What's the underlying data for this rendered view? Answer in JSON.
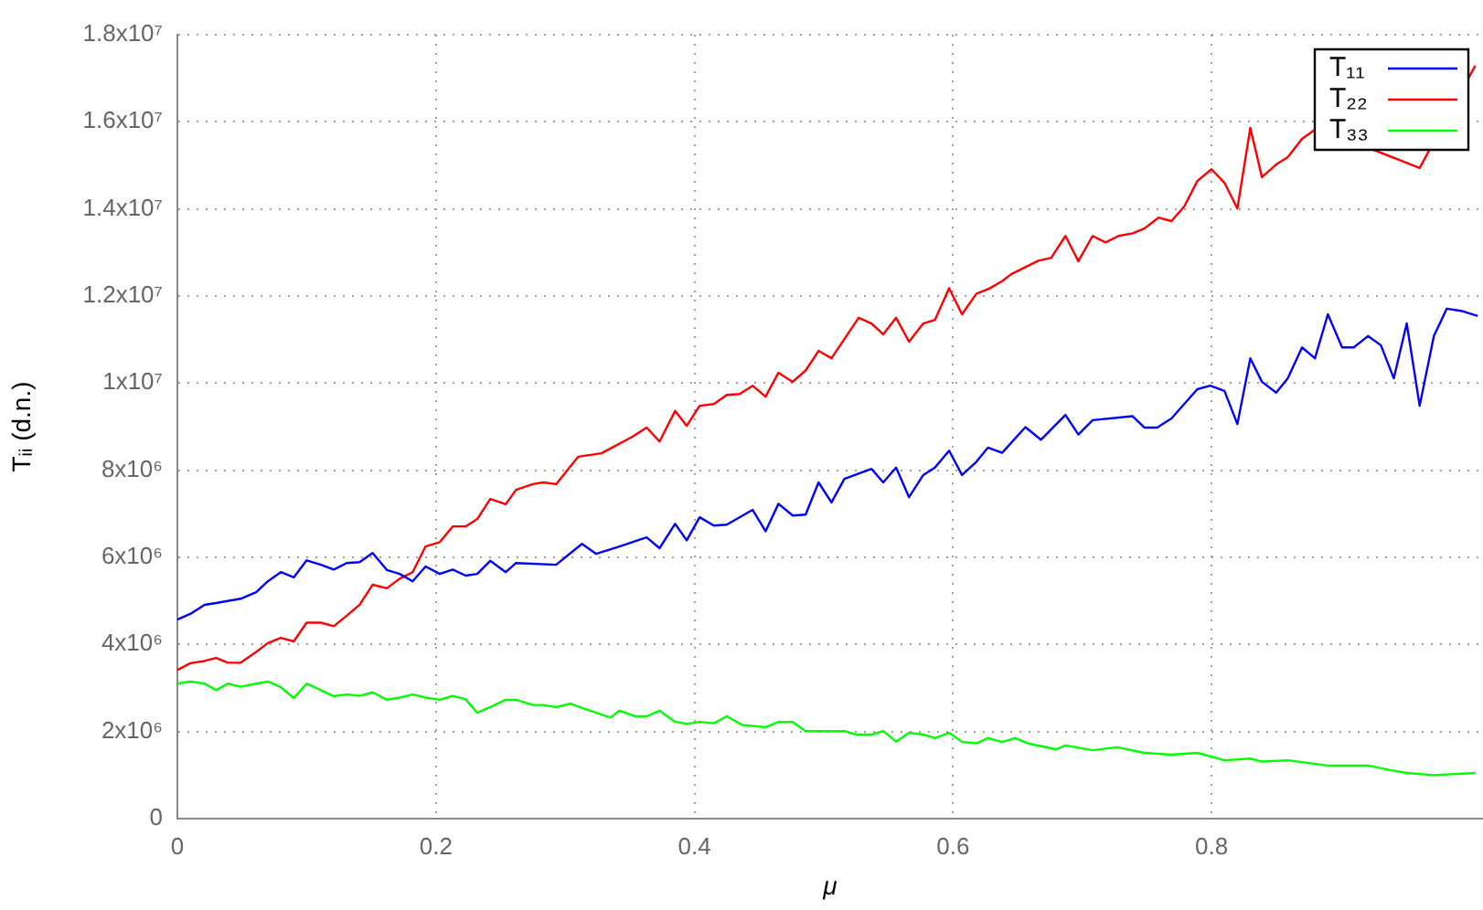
{
  "chart_data": {
    "type": "line",
    "xlabel": "μ",
    "ylabel": "Tᵢᵢ (d.n.)",
    "xlim": [
      0,
      1.01
    ],
    "ylim": [
      0,
      18000000.0
    ],
    "xticks": [
      0,
      0.2,
      0.4,
      0.6,
      0.8
    ],
    "yticks": [
      0,
      {
        "value": 2000000.0,
        "label": "2x10⁶"
      },
      {
        "value": 4000000.0,
        "label": "4x10⁶"
      },
      {
        "value": 6000000.0,
        "label": "6x10⁶"
      },
      {
        "value": 8000000.0,
        "label": "8x10⁶"
      },
      {
        "value": 10000000.0,
        "label": "1x10⁷"
      },
      {
        "value": 12000000.0,
        "label": "1.2x10⁷"
      },
      {
        "value": 14000000.0,
        "label": "1.4x10⁷"
      },
      {
        "value": 16000000.0,
        "label": "1.6x10⁷"
      },
      {
        "value": 18000000.0,
        "label": "1.8x10⁷"
      }
    ],
    "grid": true,
    "legend": "top right",
    "series": [
      {
        "name": "T₁₁",
        "color": "#0000ff",
        "x": [
          0,
          0.01,
          0.021,
          0.03,
          0.049,
          0.061,
          0.07,
          0.08,
          0.09,
          0.1,
          0.111,
          0.121,
          0.131,
          0.141,
          0.151,
          0.162,
          0.172,
          0.182,
          0.192,
          0.203,
          0.213,
          0.223,
          0.232,
          0.242,
          0.254,
          0.262,
          0.293,
          0.313,
          0.324,
          0.342,
          0.363,
          0.373,
          0.385,
          0.394,
          0.404,
          0.415,
          0.425,
          0.445,
          0.455,
          0.465,
          0.476,
          0.486,
          0.496,
          0.506,
          0.516,
          0.537,
          0.546,
          0.556,
          0.566,
          0.577,
          0.586,
          0.597,
          0.607,
          0.618,
          0.627,
          0.638,
          0.656,
          0.668,
          0.687,
          0.697,
          0.708,
          0.739,
          0.748,
          0.758,
          0.769,
          0.789,
          0.799,
          0.81,
          0.82,
          0.83,
          0.839,
          0.85,
          0.859,
          0.87,
          0.88,
          0.89,
          0.901,
          0.91,
          0.921,
          0.931,
          0.941,
          0.951,
          0.961,
          0.972,
          0.982,
          0.993,
          1.006
        ],
        "values": [
          4570000.0,
          4700000.0,
          4910000.0,
          4950000.0,
          5050000.0,
          5200000.0,
          5450000.0,
          5660000.0,
          5540000.0,
          5930000.0,
          5830000.0,
          5720000.0,
          5870000.0,
          5890000.0,
          6100000.0,
          5710000.0,
          5620000.0,
          5450000.0,
          5790000.0,
          5620000.0,
          5720000.0,
          5580000.0,
          5620000.0,
          5920000.0,
          5660000.0,
          5870000.0,
          5830000.0,
          6310000.0,
          6080000.0,
          6250000.0,
          6460000.0,
          6210000.0,
          6770000.0,
          6390000.0,
          6920000.0,
          6730000.0,
          6750000.0,
          7090000.0,
          6600000.0,
          7230000.0,
          6960000.0,
          6980000.0,
          7720000.0,
          7260000.0,
          7800000.0,
          8030000.0,
          7720000.0,
          8060000.0,
          7380000.0,
          7890000.0,
          8060000.0,
          8450000.0,
          7890000.0,
          8190000.0,
          8520000.0,
          8400000.0,
          8990000.0,
          8700000.0,
          9270000.0,
          8820000.0,
          9150000.0,
          9240000.0,
          8980000.0,
          8980000.0,
          9190000.0,
          9860000.0,
          9940000.0,
          9820000.0,
          9060000.0,
          10570000.0,
          10030000.0,
          9780000.0,
          10110000.0,
          10820000.0,
          10570000.0,
          11580000.0,
          10820000.0,
          10820000.0,
          11080000.0,
          10870000.0,
          10110000.0,
          11370000.0,
          9480000.0,
          11080000.0,
          11710000.0,
          11660000.0,
          11540000.0
        ]
      },
      {
        "name": "T₂₂",
        "color": "#ff0000",
        "x": [
          0,
          0.01,
          0.021,
          0.03,
          0.039,
          0.049,
          0.061,
          0.07,
          0.08,
          0.09,
          0.1,
          0.111,
          0.121,
          0.131,
          0.141,
          0.151,
          0.162,
          0.172,
          0.182,
          0.192,
          0.203,
          0.213,
          0.223,
          0.232,
          0.242,
          0.254,
          0.262,
          0.275,
          0.283,
          0.293,
          0.31,
          0.328,
          0.352,
          0.363,
          0.373,
          0.385,
          0.394,
          0.404,
          0.415,
          0.425,
          0.435,
          0.445,
          0.455,
          0.465,
          0.476,
          0.486,
          0.496,
          0.506,
          0.527,
          0.537,
          0.546,
          0.556,
          0.566,
          0.577,
          0.586,
          0.597,
          0.607,
          0.618,
          0.628,
          0.638,
          0.645,
          0.666,
          0.676,
          0.687,
          0.697,
          0.708,
          0.718,
          0.728,
          0.739,
          0.748,
          0.759,
          0.769,
          0.779,
          0.789,
          0.8,
          0.81,
          0.82,
          0.83,
          0.839,
          0.85,
          0.859,
          0.87,
          0.882,
          0.961,
          1.004
        ],
        "values": [
          3410000.0,
          3570000.0,
          3620000.0,
          3690000.0,
          3580000.0,
          3580000.0,
          3830000.0,
          4030000.0,
          4150000.0,
          4070000.0,
          4500000.0,
          4500000.0,
          4420000.0,
          4660000.0,
          4910000.0,
          5370000.0,
          5290000.0,
          5510000.0,
          5660000.0,
          6250000.0,
          6350000.0,
          6710000.0,
          6710000.0,
          6880000.0,
          7340000.0,
          7220000.0,
          7550000.0,
          7680000.0,
          7720000.0,
          7680000.0,
          8310000.0,
          8390000.0,
          8770000.0,
          8980000.0,
          8660000.0,
          9360000.0,
          9020000.0,
          9480000.0,
          9520000.0,
          9730000.0,
          9750000.0,
          9940000.0,
          9690000.0,
          10240000.0,
          10030000.0,
          10290000.0,
          10740000.0,
          10570000.0,
          11500000.0,
          11370000.0,
          11120000.0,
          11500000.0,
          10950000.0,
          11370000.0,
          11450000.0,
          12180000.0,
          11580000.0,
          12050000.0,
          12170000.0,
          12340000.0,
          12500000.0,
          12810000.0,
          12880000.0,
          13380000.0,
          12800000.0,
          13380000.0,
          13230000.0,
          13380000.0,
          13440000.0,
          13550000.0,
          13800000.0,
          13720000.0,
          14060000.0,
          14640000.0,
          14910000.0,
          14600000.0,
          14010000.0,
          15860000.0,
          14730000.0,
          15020000.0,
          15190000.0,
          15610000.0,
          15860000.0,
          14940000.0,
          17290000.0
        ]
      },
      {
        "name": "T₃₃",
        "color": "#00ff00",
        "x": [
          0,
          0.01,
          0.021,
          0.03,
          0.039,
          0.049,
          0.061,
          0.07,
          0.08,
          0.09,
          0.1,
          0.111,
          0.121,
          0.131,
          0.141,
          0.151,
          0.162,
          0.172,
          0.182,
          0.192,
          0.203,
          0.213,
          0.223,
          0.232,
          0.242,
          0.254,
          0.262,
          0.275,
          0.283,
          0.293,
          0.304,
          0.314,
          0.324,
          0.335,
          0.342,
          0.354,
          0.363,
          0.373,
          0.385,
          0.394,
          0.404,
          0.415,
          0.425,
          0.437,
          0.455,
          0.465,
          0.476,
          0.486,
          0.516,
          0.525,
          0.537,
          0.546,
          0.556,
          0.566,
          0.577,
          0.586,
          0.597,
          0.607,
          0.618,
          0.627,
          0.638,
          0.648,
          0.659,
          0.68,
          0.687,
          0.708,
          0.727,
          0.748,
          0.769,
          0.789,
          0.81,
          0.83,
          0.839,
          0.859,
          0.89,
          0.921,
          0.941,
          0.951,
          0.972,
          1.004
        ],
        "values": [
          3100000.0,
          3150000.0,
          3100000.0,
          2950000.0,
          3100000.0,
          3030000.0,
          3100000.0,
          3150000.0,
          3020000.0,
          2770000.0,
          3100000.0,
          2950000.0,
          2810000.0,
          2850000.0,
          2820000.0,
          2900000.0,
          2730000.0,
          2780000.0,
          2850000.0,
          2780000.0,
          2730000.0,
          2820000.0,
          2740000.0,
          2430000.0,
          2560000.0,
          2730000.0,
          2730000.0,
          2610000.0,
          2610000.0,
          2560000.0,
          2640000.0,
          2530000.0,
          2430000.0,
          2320000.0,
          2480000.0,
          2350000.0,
          2350000.0,
          2480000.0,
          2220000.0,
          2180000.0,
          2220000.0,
          2190000.0,
          2350000.0,
          2150000.0,
          2100000.0,
          2220000.0,
          2220000.0,
          2010000.0,
          2010000.0,
          1930000.0,
          1930000.0,
          2010000.0,
          1770000.0,
          1970000.0,
          1930000.0,
          1850000.0,
          1970000.0,
          1760000.0,
          1730000.0,
          1850000.0,
          1760000.0,
          1850000.0,
          1720000.0,
          1590000.0,
          1680000.0,
          1570000.0,
          1640000.0,
          1510000.0,
          1470000.0,
          1510000.0,
          1340000.0,
          1380000.0,
          1310000.0,
          1340000.0,
          1220000.0,
          1220000.0,
          1100000.0,
          1050000.0,
          1000000.0,
          1050000.0
        ]
      }
    ]
  }
}
